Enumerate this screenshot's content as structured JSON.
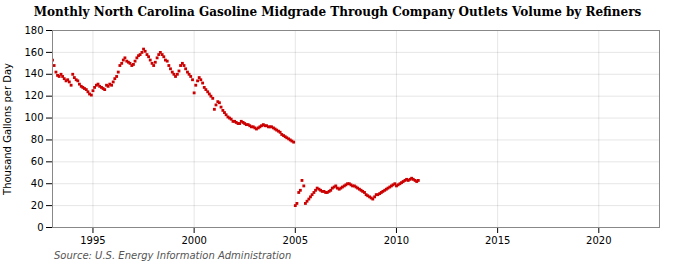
{
  "chart_data": {
    "type": "scatter",
    "title": "Monthly North Carolina Gasoline Midgrade Through Company Outlets Volume by Refiners",
    "ylabel": "Thousand Gallons per Day",
    "source": "Source: U.S. Energy Information Administration",
    "color": "#cc0000",
    "marker": "square",
    "grid": true,
    "xlim": [
      1993,
      2023
    ],
    "ylim": [
      0,
      180
    ],
    "xticks": [
      1995,
      2000,
      2005,
      2010,
      2015,
      2020
    ],
    "yticks": [
      0,
      20,
      40,
      60,
      80,
      100,
      120,
      140,
      160,
      180
    ],
    "x": [
      1993.0,
      1993.08,
      1993.17,
      1993.25,
      1993.33,
      1993.42,
      1993.5,
      1993.58,
      1993.67,
      1993.75,
      1993.83,
      1993.92,
      1994.0,
      1994.08,
      1994.17,
      1994.25,
      1994.33,
      1994.42,
      1994.5,
      1994.58,
      1994.67,
      1994.75,
      1994.83,
      1994.92,
      1995.0,
      1995.08,
      1995.17,
      1995.25,
      1995.33,
      1995.42,
      1995.5,
      1995.58,
      1995.67,
      1995.75,
      1995.83,
      1995.92,
      1996.0,
      1996.08,
      1996.17,
      1996.25,
      1996.33,
      1996.42,
      1996.5,
      1996.58,
      1996.67,
      1996.75,
      1996.83,
      1996.92,
      1997.0,
      1997.08,
      1997.17,
      1997.25,
      1997.33,
      1997.42,
      1997.5,
      1997.58,
      1997.67,
      1997.75,
      1997.83,
      1997.92,
      1998.0,
      1998.08,
      1998.17,
      1998.25,
      1998.33,
      1998.42,
      1998.5,
      1998.58,
      1998.67,
      1998.75,
      1998.83,
      1998.92,
      1999.0,
      1999.08,
      1999.17,
      1999.25,
      1999.33,
      1999.42,
      1999.5,
      1999.58,
      1999.67,
      1999.75,
      1999.83,
      1999.92,
      2000.0,
      2000.08,
      2000.17,
      2000.25,
      2000.33,
      2000.42,
      2000.5,
      2000.58,
      2000.67,
      2000.75,
      2000.83,
      2000.92,
      2001.0,
      2001.08,
      2001.17,
      2001.25,
      2001.33,
      2001.42,
      2001.5,
      2001.58,
      2001.67,
      2001.75,
      2001.83,
      2001.92,
      2002.0,
      2002.08,
      2002.17,
      2002.25,
      2002.33,
      2002.42,
      2002.5,
      2002.58,
      2002.67,
      2002.75,
      2002.83,
      2002.92,
      2003.0,
      2003.08,
      2003.17,
      2003.25,
      2003.33,
      2003.42,
      2003.5,
      2003.58,
      2003.67,
      2003.75,
      2003.83,
      2003.92,
      2004.0,
      2004.08,
      2004.17,
      2004.25,
      2004.33,
      2004.42,
      2004.5,
      2004.58,
      2004.67,
      2004.75,
      2004.83,
      2004.92,
      2005.0,
      2005.08,
      2005.17,
      2005.25,
      2005.33,
      2005.42,
      2005.5,
      2005.58,
      2005.67,
      2005.75,
      2005.83,
      2005.92,
      2006.0,
      2006.08,
      2006.17,
      2006.25,
      2006.33,
      2006.42,
      2006.5,
      2006.58,
      2006.67,
      2006.75,
      2006.83,
      2006.92,
      2007.0,
      2007.08,
      2007.17,
      2007.25,
      2007.33,
      2007.42,
      2007.5,
      2007.58,
      2007.67,
      2007.75,
      2007.83,
      2007.92,
      2008.0,
      2008.08,
      2008.17,
      2008.25,
      2008.33,
      2008.42,
      2008.5,
      2008.58,
      2008.67,
      2008.75,
      2008.83,
      2008.92,
      2009.0,
      2009.08,
      2009.17,
      2009.25,
      2009.33,
      2009.42,
      2009.5,
      2009.58,
      2009.67,
      2009.75,
      2009.83,
      2009.92,
      2010.0,
      2010.08,
      2010.17,
      2010.25,
      2010.33,
      2010.42,
      2010.5,
      2010.58,
      2010.67,
      2010.75,
      2010.83,
      2010.92,
      2011.0,
      2011.08
    ],
    "values": [
      153,
      148,
      142,
      139,
      138,
      140,
      138,
      136,
      134,
      135,
      133,
      130,
      140,
      137,
      135,
      134,
      131,
      129,
      128,
      127,
      126,
      124,
      122,
      121,
      125,
      128,
      130,
      131,
      129,
      128,
      127,
      126,
      130,
      129,
      131,
      130,
      133,
      136,
      138,
      142,
      148,
      150,
      153,
      155,
      152,
      151,
      150,
      148,
      149,
      152,
      155,
      157,
      158,
      160,
      163,
      161,
      158,
      156,
      153,
      150,
      148,
      151,
      155,
      158,
      160,
      158,
      156,
      153,
      152,
      148,
      145,
      142,
      140,
      138,
      140,
      143,
      148,
      150,
      148,
      145,
      142,
      140,
      138,
      135,
      123,
      130,
      134,
      137,
      135,
      132,
      128,
      126,
      124,
      122,
      120,
      118,
      108,
      112,
      115,
      114,
      110,
      107,
      105,
      103,
      101,
      100,
      99,
      97,
      97,
      96,
      95,
      95,
      97,
      96,
      95,
      94,
      94,
      93,
      92,
      92,
      91,
      90,
      91,
      92,
      93,
      94,
      93,
      93,
      92,
      92,
      92,
      91,
      90,
      89,
      88,
      87,
      85,
      84,
      83,
      82,
      81,
      80,
      79,
      78,
      20,
      22,
      32,
      34,
      43,
      38,
      22,
      24,
      26,
      28,
      30,
      32,
      34,
      36,
      35,
      34,
      33,
      33,
      32,
      32,
      33,
      34,
      36,
      37,
      38,
      36,
      35,
      36,
      37,
      38,
      39,
      40,
      40,
      39,
      38,
      38,
      37,
      36,
      35,
      34,
      33,
      32,
      30,
      29,
      28,
      27,
      26,
      28,
      30,
      30,
      31,
      32,
      33,
      34,
      35,
      36,
      37,
      38,
      39,
      40,
      38,
      39,
      40,
      41,
      42,
      43,
      44,
      43,
      44,
      45,
      44,
      43,
      42,
      43
    ]
  }
}
